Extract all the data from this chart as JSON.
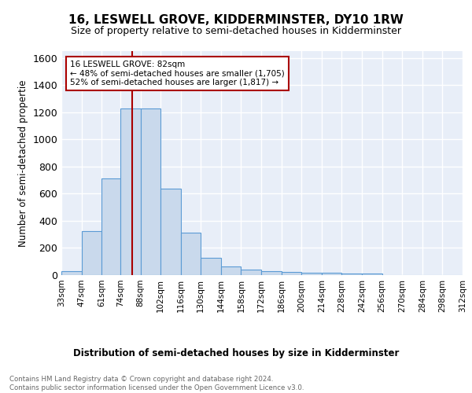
{
  "title": "16, LESWELL GROVE, KIDDERMINSTER, DY10 1RW",
  "subtitle": "Size of property relative to semi-detached houses in Kidderminster",
  "xlabel": "Distribution of semi-detached houses by size in Kidderminster",
  "ylabel": "Number of semi-detached propertie",
  "footnote": "Contains HM Land Registry data © Crown copyright and database right 2024.\nContains public sector information licensed under the Open Government Licence v3.0.",
  "annotation_line1": "16 LESWELL GROVE: 82sqm",
  "annotation_line2": "← 48% of semi-detached houses are smaller (1,705)",
  "annotation_line3": "52% of semi-detached houses are larger (1,817) →",
  "property_size": 82,
  "bar_color": "#c9d9ec",
  "bar_edge_color": "#5b9bd5",
  "vline_color": "#aa0000",
  "annotation_box_edge": "#aa0000",
  "background_color": "#e8eef8",
  "grid_color": "#ffffff",
  "bin_edges": [
    33,
    47,
    61,
    74,
    88,
    102,
    116,
    130,
    144,
    158,
    172,
    186,
    200,
    214,
    228,
    242,
    256,
    270,
    284,
    298,
    312
  ],
  "bin_labels": [
    "33sqm",
    "47sqm",
    "61sqm",
    "74sqm",
    "88sqm",
    "102sqm",
    "116sqm",
    "130sqm",
    "144sqm",
    "158sqm",
    "172sqm",
    "186sqm",
    "200sqm",
    "214sqm",
    "228sqm",
    "242sqm",
    "256sqm",
    "270sqm",
    "284sqm",
    "298sqm",
    "312sqm"
  ],
  "counts": [
    30,
    325,
    710,
    1230,
    1230,
    635,
    315,
    130,
    65,
    40,
    30,
    22,
    18,
    15,
    13,
    12,
    1,
    0,
    0,
    0,
    0
  ],
  "ylim": [
    0,
    1650
  ],
  "yticks": [
    0,
    200,
    400,
    600,
    800,
    1000,
    1200,
    1400,
    1600
  ]
}
